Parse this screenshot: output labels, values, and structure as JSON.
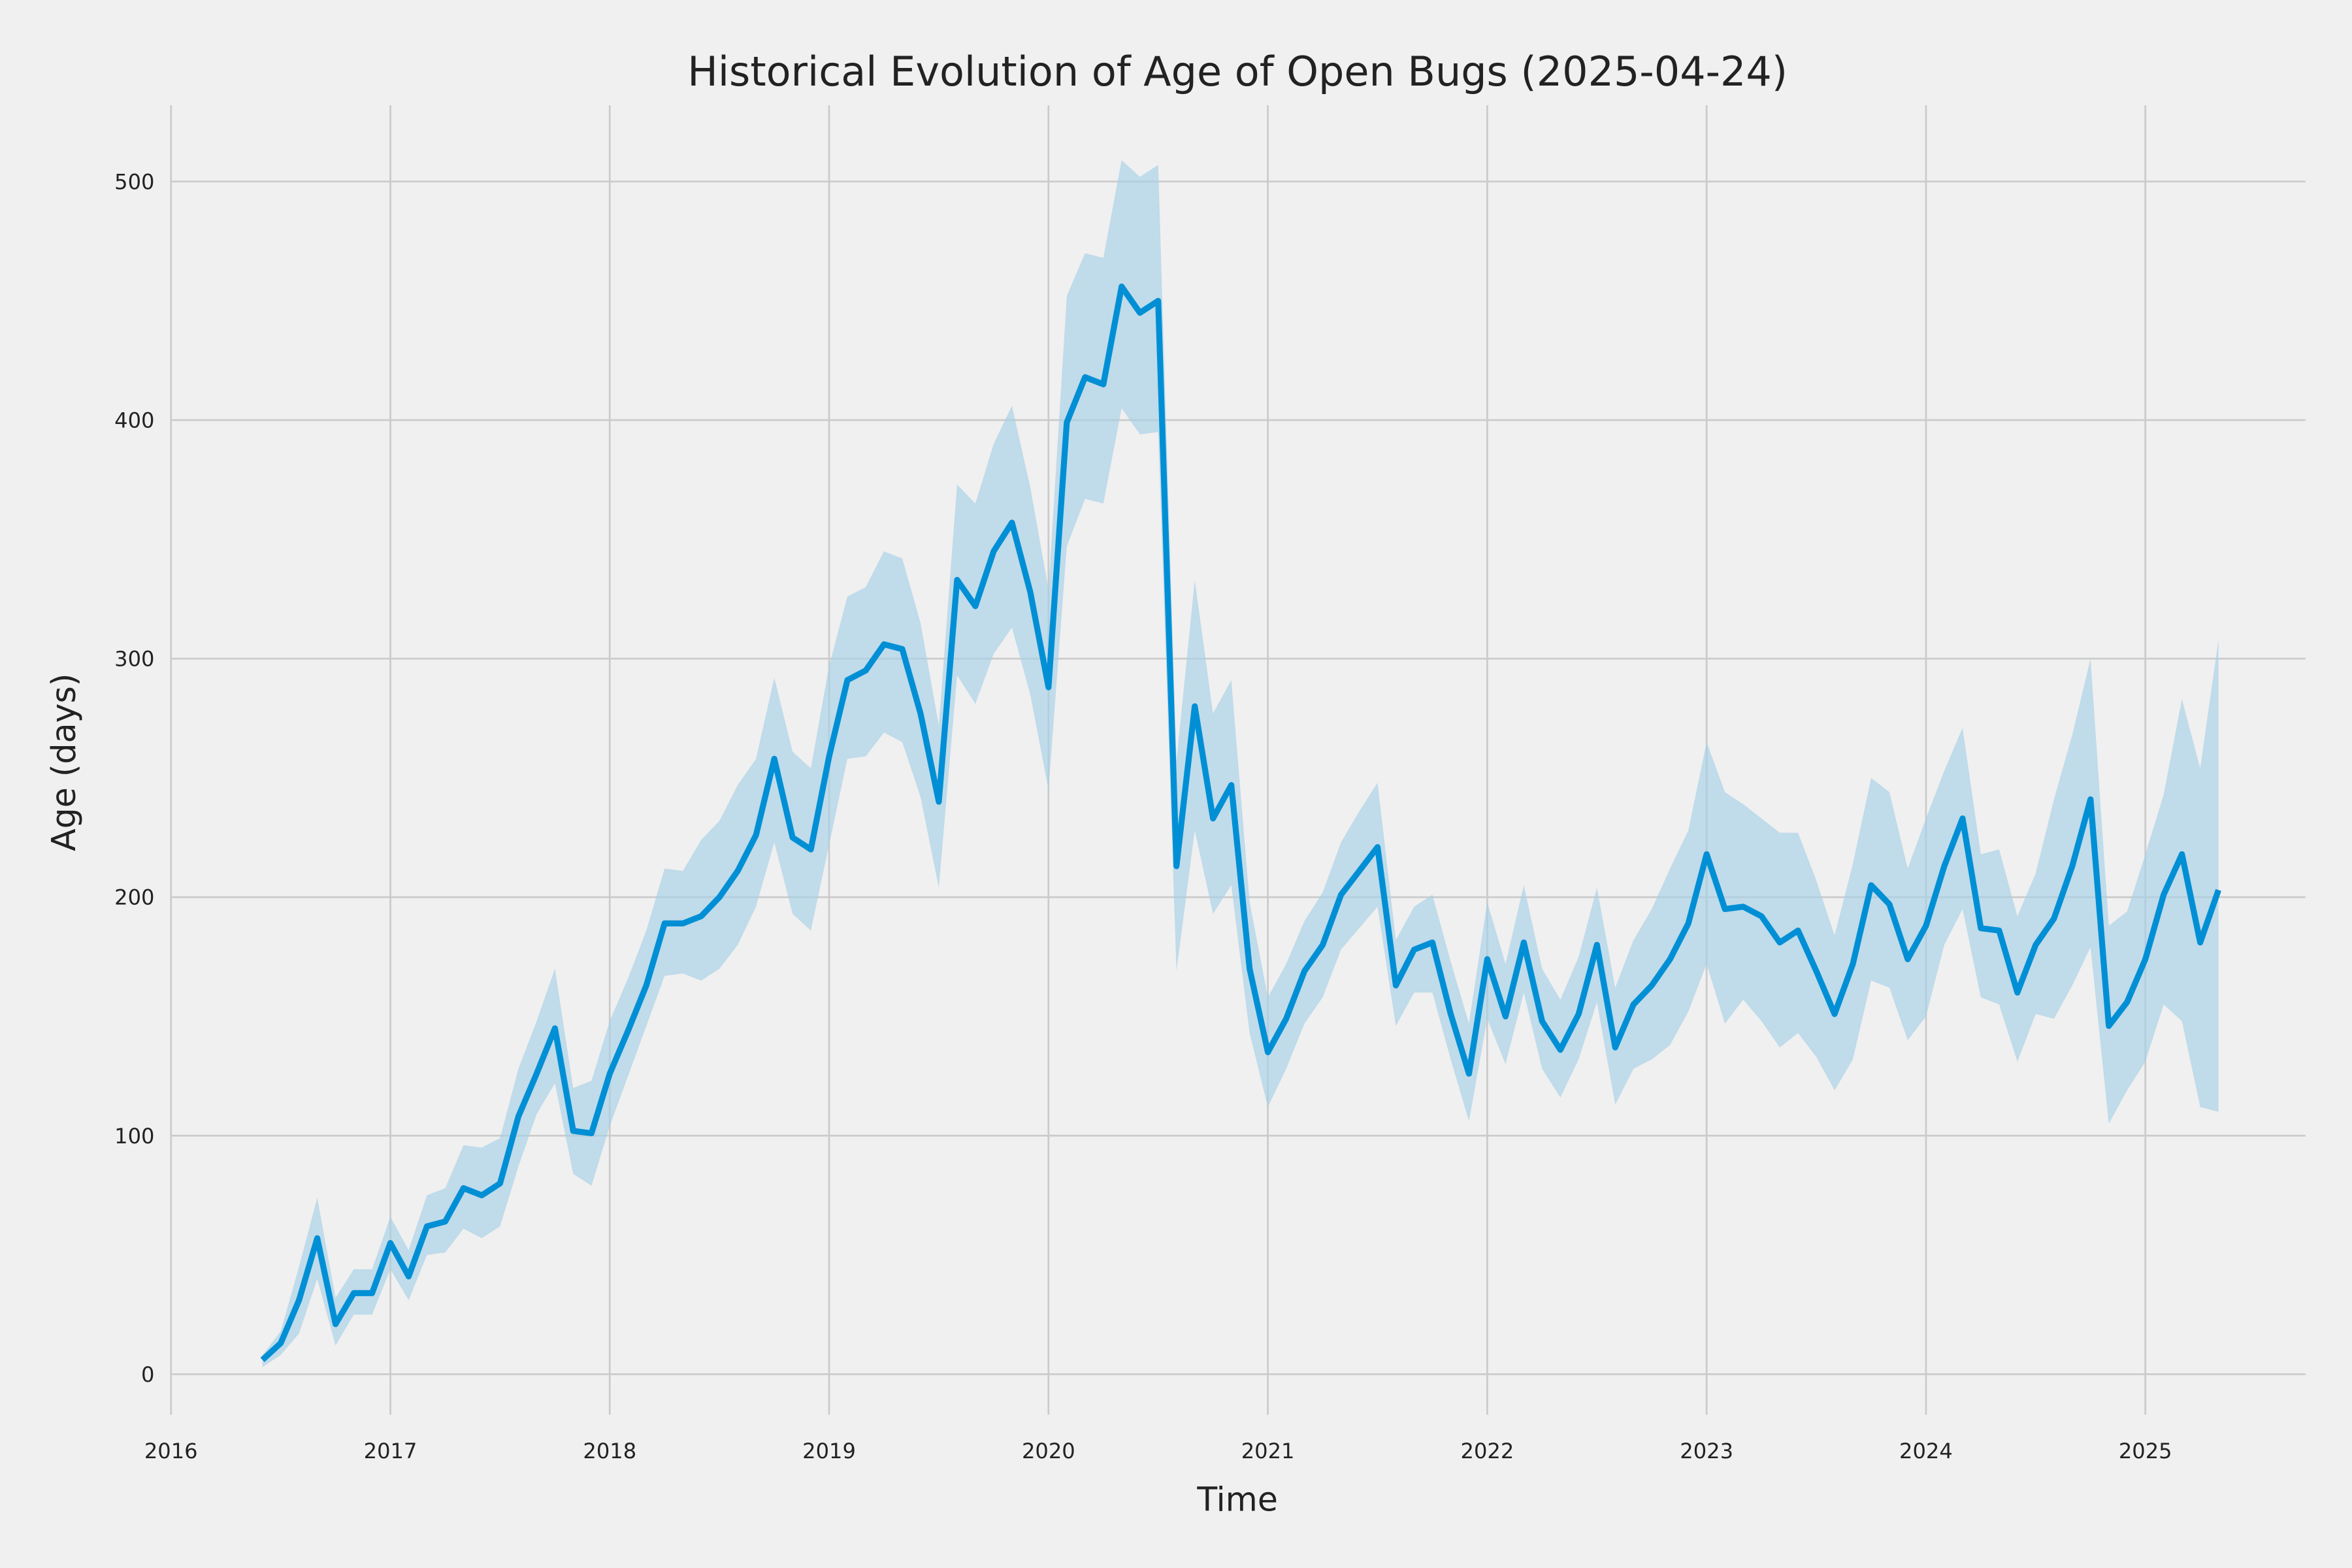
{
  "chart_data": {
    "type": "line",
    "title": "Historical Evolution of Age of Open Bugs (2025-04-24)",
    "xlabel": "Time",
    "ylabel": "Age (days)",
    "xlim": [
      2016,
      2025.73
    ],
    "ylim": [
      -17,
      532
    ],
    "grid": true,
    "x_ticks": [
      2016,
      2017,
      2018,
      2019,
      2020,
      2021,
      2022,
      2023,
      2024,
      2025
    ],
    "x_tick_labels": [
      "2016",
      "2017",
      "2018",
      "2019",
      "2020",
      "2021",
      "2022",
      "2023",
      "2024",
      "2025"
    ],
    "y_ticks": [
      0,
      100,
      200,
      300,
      400,
      500
    ],
    "y_tick_labels": [
      "0",
      "100",
      "200",
      "300",
      "400",
      "500"
    ],
    "x_start": 2016.4167,
    "x_step_months": 1,
    "series": [
      {
        "name": "Age of open bugs",
        "color": "#008fd5",
        "band_color": "#a6cfe6",
        "values": [
          6,
          13,
          31,
          57,
          21,
          34,
          34,
          55,
          41,
          62,
          64,
          78,
          75,
          80,
          108,
          126,
          145,
          102,
          101,
          126,
          144,
          163,
          189,
          189,
          192,
          200,
          211,
          226,
          258,
          225,
          220,
          259,
          291,
          295,
          306,
          304,
          277,
          240,
          333,
          322,
          345,
          357,
          328,
          288,
          399,
          418,
          415,
          456,
          445,
          450,
          213,
          280,
          233,
          247,
          170,
          135,
          149,
          169,
          180,
          201,
          211,
          221,
          163,
          178,
          181,
          151,
          126,
          174,
          150,
          181,
          148,
          136,
          151,
          180,
          137,
          155,
          163,
          174,
          189,
          218,
          195,
          196,
          192,
          181,
          186,
          169,
          151,
          172,
          205,
          197,
          174,
          188,
          213,
          233,
          187,
          186,
          160,
          180,
          191,
          213,
          241,
          146,
          156,
          174,
          201,
          218,
          181,
          203
        ],
        "upper": [
          8,
          18,
          45,
          74,
          32,
          44,
          44,
          66,
          52,
          75,
          78,
          96,
          95,
          99,
          128,
          148,
          170,
          120,
          123,
          148,
          166,
          186,
          212,
          211,
          224,
          232,
          247,
          258,
          292,
          261,
          254,
          297,
          326,
          330,
          345,
          342,
          315,
          272,
          373,
          365,
          390,
          406,
          372,
          329,
          452,
          470,
          468,
          509,
          502,
          507,
          257,
          333,
          277,
          291,
          198,
          158,
          172,
          190,
          202,
          223,
          236,
          248,
          182,
          196,
          201,
          173,
          147,
          198,
          172,
          205,
          170,
          157,
          175,
          204,
          162,
          182,
          195,
          212,
          228,
          265,
          244,
          239,
          233,
          227,
          227,
          207,
          184,
          214,
          250,
          244,
          212,
          233,
          253,
          271,
          218,
          220,
          192,
          210,
          241,
          268,
          300,
          188,
          194,
          218,
          243,
          283,
          254,
          308
        ],
        "lower": [
          3,
          8,
          17,
          40,
          12,
          25,
          25,
          44,
          31,
          50,
          51,
          61,
          57,
          62,
          87,
          109,
          122,
          84,
          79,
          104,
          125,
          146,
          167,
          168,
          165,
          170,
          180,
          196,
          223,
          193,
          186,
          222,
          258,
          259,
          269,
          265,
          242,
          204,
          293,
          281,
          302,
          313,
          285,
          245,
          347,
          367,
          365,
          405,
          394,
          395,
          169,
          228,
          193,
          205,
          143,
          112,
          128,
          147,
          158,
          178,
          187,
          196,
          146,
          160,
          160,
          132,
          106,
          149,
          130,
          160,
          128,
          116,
          132,
          156,
          113,
          128,
          132,
          138,
          152,
          172,
          147,
          157,
          148,
          137,
          143,
          133,
          119,
          132,
          165,
          162,
          140,
          150,
          180,
          195,
          158,
          155,
          131,
          151,
          149,
          163,
          179,
          105,
          119,
          131,
          155,
          148,
          112,
          110
        ]
      }
    ]
  }
}
